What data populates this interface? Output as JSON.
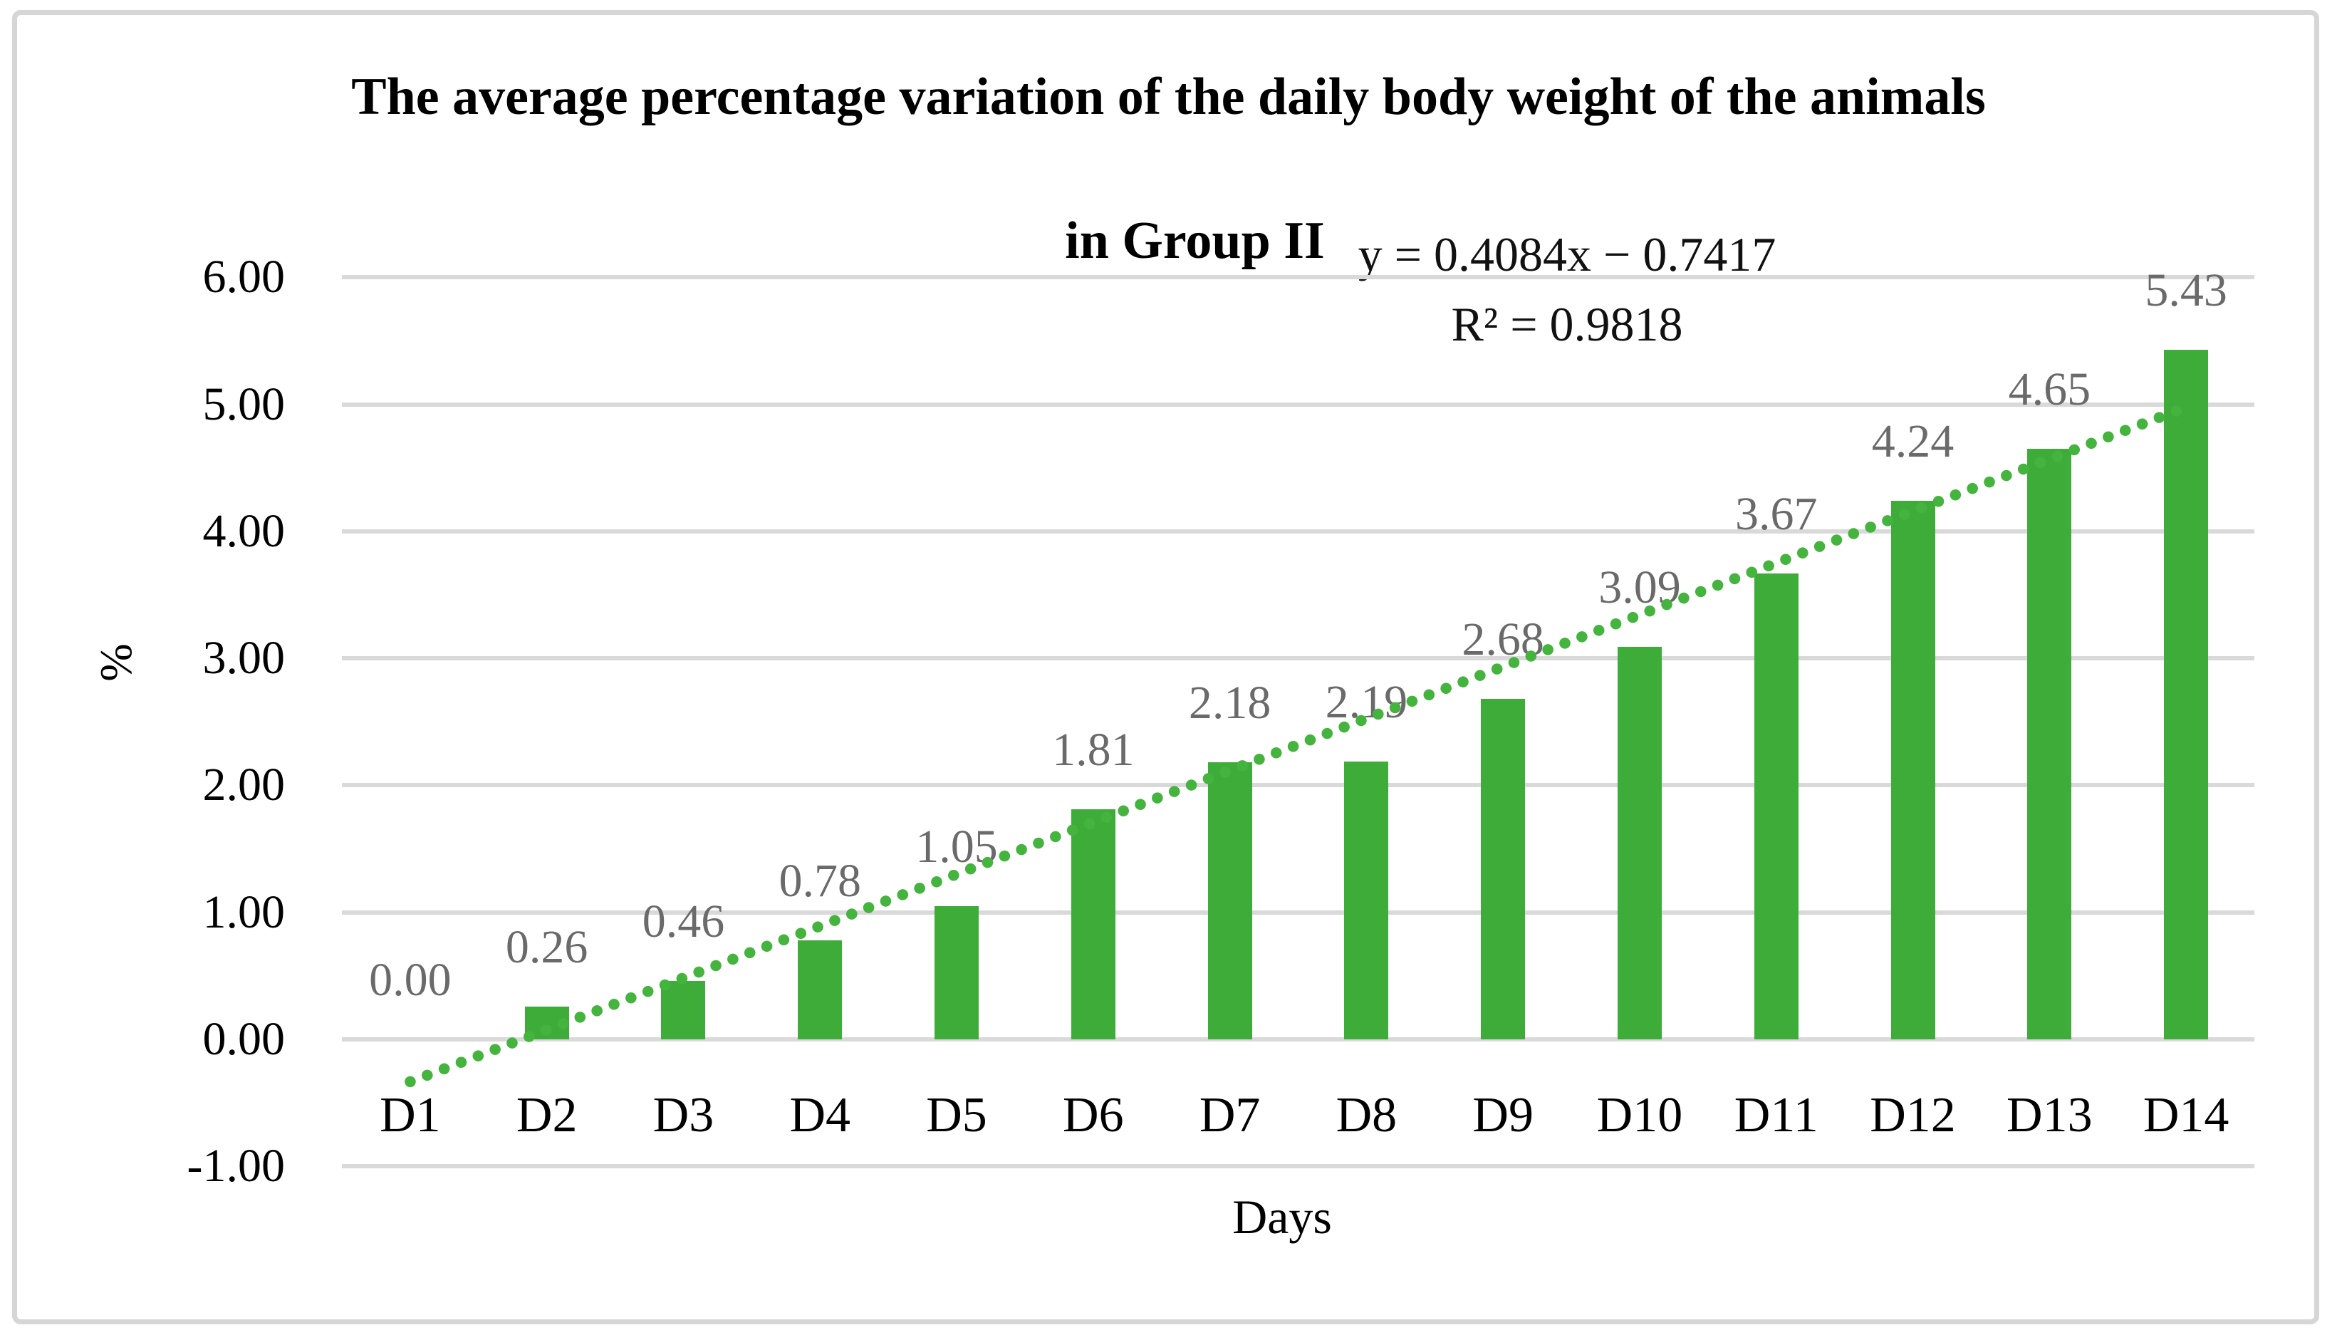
{
  "chart_data": {
    "type": "bar",
    "title_line1": "The average percentage variation of the daily body weight of the animals",
    "title_line2": "in Group II",
    "xlabel": "Days",
    "ylabel": "%",
    "categories": [
      "D1",
      "D2",
      "D3",
      "D4",
      "D5",
      "D6",
      "D7",
      "D8",
      "D9",
      "D10",
      "D11",
      "D12",
      "D13",
      "D14"
    ],
    "values": [
      0.0,
      0.26,
      0.46,
      0.78,
      1.05,
      1.81,
      2.18,
      2.19,
      2.68,
      3.09,
      3.67,
      4.24,
      4.65,
      5.43
    ],
    "data_labels": [
      "0.00",
      "0.26",
      "0.46",
      "0.78",
      "1.05",
      "1.81",
      "2.18",
      "2.19",
      "2.68",
      "3.09",
      "3.67",
      "4.24",
      "4.65",
      "5.43"
    ],
    "ylim": [
      -1,
      6
    ],
    "ytick_step": 1,
    "ytick_labels": [
      "-1.00",
      "0.00",
      "1.00",
      "2.00",
      "3.00",
      "4.00",
      "5.00",
      "6.00"
    ],
    "grid": true,
    "legend": "none",
    "trendline": {
      "equation_text": "y = 0.4084x − 0.7417",
      "r_squared_text": "R² = 0.9818",
      "slope": 0.4084,
      "intercept": -0.7417,
      "style": "dotted"
    },
    "colors": {
      "bar": "#3eac39",
      "trendline": "#45b43e",
      "gridline": "#d9d9d9",
      "data_label": "#6a6a6a",
      "axis_text": "#000000",
      "frame": "#d6d6d6"
    }
  }
}
